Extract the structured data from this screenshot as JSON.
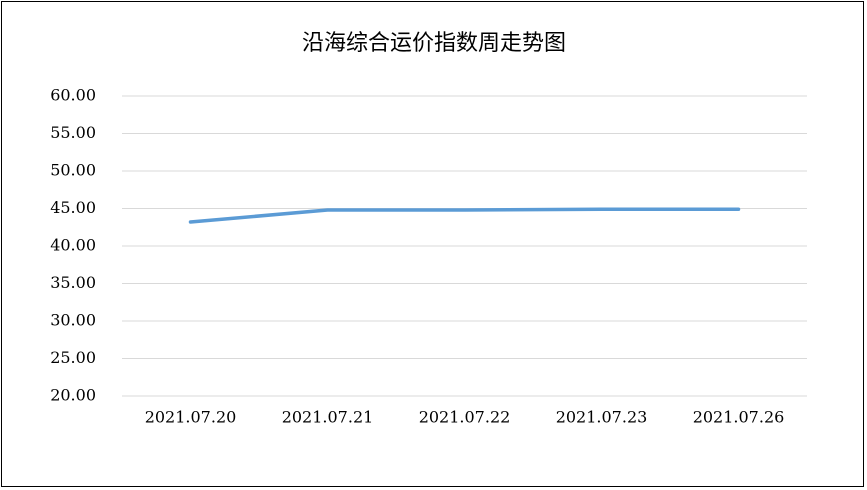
{
  "chart_data": {
    "type": "line",
    "title": "沿海综合运价指数周走势图",
    "categories": [
      "2021.07.20",
      "2021.07.21",
      "2021.07.22",
      "2021.07.23",
      "2021.07.26"
    ],
    "values": [
      43.2,
      44.8,
      44.8,
      44.9,
      44.9
    ],
    "color": "#5b9bd5",
    "ylim": [
      20,
      60
    ],
    "yticks": [
      {
        "value": 20,
        "label": "20.00"
      },
      {
        "value": 25,
        "label": "25.00"
      },
      {
        "value": 30,
        "label": "30.00"
      },
      {
        "value": 35,
        "label": "35.00"
      },
      {
        "value": 40,
        "label": "40.00"
      },
      {
        "value": 45,
        "label": "45.00"
      },
      {
        "value": 50,
        "label": "50.00"
      },
      {
        "value": 55,
        "label": "55.00"
      },
      {
        "value": 60,
        "label": "60.00"
      }
    ],
    "grid": true
  }
}
